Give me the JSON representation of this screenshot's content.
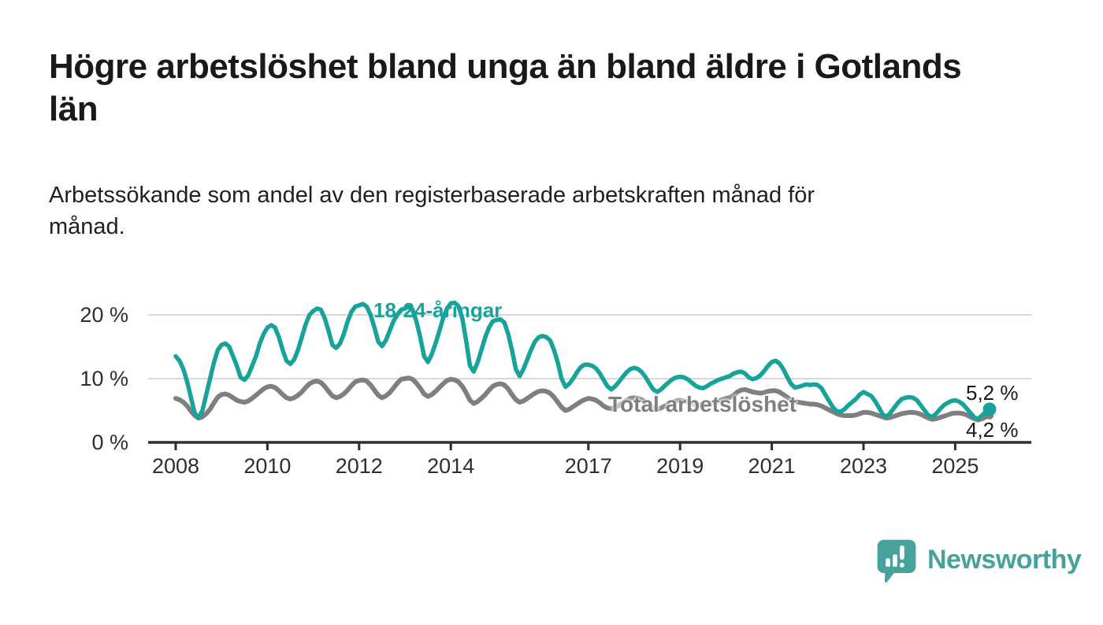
{
  "header": {
    "title": "Högre arbetslöshet bland unga än bland äldre i Gotlands\nlän",
    "subtitle": "Arbetssökande som andel av den registerbaserade arbetskraften månad för\nmånad."
  },
  "chart_data": {
    "type": "line",
    "title": "Högre arbetslöshet bland unga än bland äldre i Gotlands län",
    "subtitle": "Arbetssökande som andel av den registerbaserade arbetskraften månad för månad.",
    "unit": "%",
    "frequency": "monthly",
    "x_start": "2008-01",
    "x_end": "2025-10",
    "ylim": [
      0,
      22
    ],
    "grid": "horizontal",
    "legend_position": "inline-labels",
    "axis_color": "#2e2e2e",
    "grid_color": "#d9d9d9",
    "y_ticks": [
      {
        "value": 0,
        "label": "0 %"
      },
      {
        "value": 10,
        "label": "10 %"
      },
      {
        "value": 20,
        "label": "20 %"
      }
    ],
    "x_ticks": [
      {
        "year": 2008,
        "label": "2008"
      },
      {
        "year": 2010,
        "label": "2010"
      },
      {
        "year": 2012,
        "label": "2012"
      },
      {
        "year": 2014,
        "label": "2014"
      },
      {
        "year": 2017,
        "label": "2017"
      },
      {
        "year": 2019,
        "label": "2019"
      },
      {
        "year": 2021,
        "label": "2021"
      },
      {
        "year": 2023,
        "label": "2023"
      },
      {
        "year": 2025,
        "label": "2025"
      }
    ],
    "series": [
      {
        "name": "18-24-åringar",
        "color": "#17a39a",
        "end_label": "5,2 %",
        "end_value": 5.2,
        "values": [
          13.5,
          12.8,
          11.5,
          9.5,
          7.0,
          4.5,
          3.9,
          5.0,
          7.5,
          10.0,
          12.5,
          14.5,
          15.3,
          15.5,
          15.0,
          13.5,
          12.0,
          10.2,
          9.8,
          10.5,
          12.0,
          13.5,
          15.5,
          17.0,
          18.0,
          18.4,
          18.0,
          16.5,
          14.5,
          12.8,
          12.3,
          13.0,
          14.5,
          16.5,
          18.5,
          20.0,
          20.6,
          21.0,
          20.8,
          19.5,
          17.5,
          15.3,
          14.8,
          15.5,
          17.0,
          19.0,
          20.5,
          21.3,
          21.5,
          21.7,
          21.3,
          20.0,
          18.0,
          15.8,
          15.1,
          16.0,
          17.5,
          19.0,
          20.0,
          20.8,
          21.0,
          21.3,
          20.8,
          19.0,
          16.5,
          13.5,
          12.6,
          13.8,
          15.5,
          17.5,
          19.5,
          21.0,
          21.8,
          21.9,
          21.4,
          19.5,
          16.0,
          12.0,
          11.1,
          12.5,
          14.5,
          16.5,
          18.0,
          19.0,
          19.2,
          19.3,
          18.8,
          17.0,
          14.5,
          11.5,
          10.4,
          11.5,
          13.0,
          14.5,
          15.8,
          16.5,
          16.7,
          16.5,
          16.0,
          14.5,
          12.5,
          10.0,
          8.7,
          9.2,
          10.0,
          11.0,
          11.8,
          12.2,
          12.2,
          12.0,
          11.6,
          10.8,
          9.8,
          8.8,
          8.3,
          8.8,
          9.5,
          10.3,
          11.0,
          11.5,
          11.7,
          11.5,
          11.0,
          10.2,
          9.2,
          8.3,
          7.9,
          8.3,
          8.9,
          9.4,
          9.9,
          10.2,
          10.3,
          10.2,
          9.9,
          9.4,
          8.9,
          8.6,
          8.5,
          8.8,
          9.2,
          9.5,
          9.8,
          10.0,
          10.2,
          10.4,
          10.8,
          11.0,
          11.1,
          10.8,
          10.2,
          9.9,
          10.1,
          10.5,
          11.2,
          12.0,
          12.6,
          12.8,
          12.4,
          11.5,
          10.3,
          9.2,
          8.6,
          8.7,
          8.9,
          9.1,
          9.0,
          9.1,
          9.0,
          8.5,
          7.5,
          6.5,
          5.5,
          4.9,
          4.8,
          5.2,
          5.8,
          6.3,
          6.8,
          7.5,
          7.9,
          7.6,
          7.3,
          6.5,
          5.5,
          4.4,
          4.0,
          4.6,
          5.4,
          6.2,
          6.8,
          7.0,
          7.1,
          7.0,
          6.6,
          5.8,
          5.0,
          4.2,
          4.0,
          4.5,
          5.2,
          5.8,
          6.2,
          6.5,
          6.6,
          6.4,
          6.0,
          5.3,
          4.6,
          3.9,
          3.7,
          4.2,
          4.8,
          5.2
        ]
      },
      {
        "name": "Total arbetslöshet",
        "color": "#7f7f7f",
        "end_label": "4,2 %",
        "end_value": 4.2,
        "values": [
          6.9,
          6.7,
          6.3,
          5.7,
          4.9,
          4.2,
          3.8,
          4.0,
          4.5,
          5.2,
          6.2,
          7.1,
          7.5,
          7.6,
          7.4,
          7.0,
          6.6,
          6.4,
          6.3,
          6.5,
          6.9,
          7.4,
          7.9,
          8.4,
          8.7,
          8.8,
          8.6,
          8.1,
          7.5,
          7.0,
          6.8,
          7.0,
          7.4,
          7.9,
          8.6,
          9.2,
          9.5,
          9.6,
          9.4,
          8.8,
          8.0,
          7.3,
          7.0,
          7.2,
          7.6,
          8.2,
          8.9,
          9.5,
          9.7,
          9.8,
          9.6,
          9.0,
          8.2,
          7.4,
          7.0,
          7.3,
          7.8,
          8.5,
          9.3,
          9.9,
          10.0,
          10.1,
          9.9,
          9.3,
          8.5,
          7.6,
          7.2,
          7.5,
          8.0,
          8.6,
          9.2,
          9.7,
          9.9,
          9.8,
          9.5,
          8.8,
          7.8,
          6.6,
          6.1,
          6.4,
          6.9,
          7.5,
          8.2,
          8.8,
          9.1,
          9.2,
          9.0,
          8.4,
          7.5,
          6.7,
          6.3,
          6.5,
          6.9,
          7.3,
          7.7,
          8.0,
          8.1,
          8.0,
          7.7,
          7.1,
          6.3,
          5.5,
          5.0,
          5.2,
          5.6,
          6.0,
          6.4,
          6.7,
          6.9,
          6.8,
          6.6,
          6.2,
          5.7,
          5.4,
          5.3,
          5.5,
          5.8,
          6.2,
          6.6,
          6.9,
          7.0,
          6.9,
          6.7,
          6.3,
          5.8,
          5.4,
          5.2,
          5.4,
          5.7,
          6.0,
          6.3,
          6.5,
          6.6,
          6.5,
          6.4,
          6.1,
          5.9,
          5.8,
          5.8,
          5.9,
          6.1,
          6.3,
          6.5,
          6.7,
          6.9,
          7.0,
          7.4,
          7.9,
          8.2,
          8.3,
          8.1,
          7.9,
          7.8,
          7.7,
          7.8,
          8.0,
          8.1,
          8.1,
          7.9,
          7.5,
          7.1,
          6.7,
          6.4,
          6.3,
          6.2,
          6.1,
          6.0,
          6.0,
          5.9,
          5.7,
          5.4,
          5.1,
          4.8,
          4.5,
          4.3,
          4.2,
          4.2,
          4.2,
          4.3,
          4.5,
          4.7,
          4.7,
          4.6,
          4.4,
          4.2,
          4.0,
          3.8,
          3.9,
          4.1,
          4.3,
          4.5,
          4.6,
          4.7,
          4.7,
          4.6,
          4.4,
          4.1,
          3.8,
          3.6,
          3.7,
          3.9,
          4.1,
          4.3,
          4.5,
          4.6,
          4.6,
          4.5,
          4.3,
          4.0,
          3.7,
          3.5,
          3.7,
          4.0,
          4.2
        ]
      }
    ]
  },
  "branding": {
    "logo_text": "Newsworthy",
    "logo_color": "#46a39b"
  }
}
